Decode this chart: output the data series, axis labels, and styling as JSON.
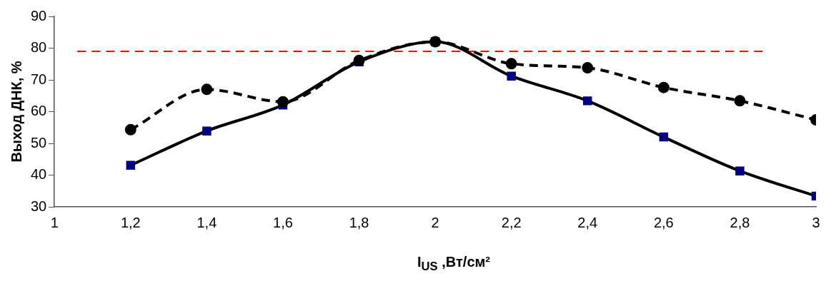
{
  "chart_data": {
    "type": "line",
    "ylabel": "Выход ДНК, %",
    "xlabel": "I$_{US}$ ,Вт/см²",
    "x": [
      1.2,
      1.4,
      1.6,
      1.8,
      2,
      2.2,
      2.4,
      2.6,
      2.8,
      3
    ],
    "xlim": [
      1,
      3
    ],
    "xticks": [
      1,
      {
        "value": 1.2,
        "label": "1,2"
      },
      {
        "value": 1.4,
        "label": "1,4"
      },
      {
        "value": 1.6,
        "label": "1,6"
      },
      {
        "value": 1.8,
        "label": "1,8"
      },
      2,
      {
        "value": 2.2,
        "label": "2,2"
      },
      {
        "value": 2.4,
        "label": "2,4"
      },
      {
        "value": 2.6,
        "label": "2,6"
      },
      {
        "value": 2.8,
        "label": "2,8"
      },
      3
    ],
    "ylim": [
      30,
      90
    ],
    "yticks": [
      30,
      40,
      50,
      60,
      70,
      80,
      90
    ],
    "grid": false,
    "legend": false,
    "series": [
      {
        "color": "#000000",
        "values": [
          54.3,
          67,
          63.1,
          76.1,
          82,
          75.1,
          73.8,
          67.6,
          63.4,
          57.4
        ],
        "marker": "circle",
        "line_style": "dashed"
      },
      {
        "color": "#000080",
        "values": [
          43.1,
          53.9,
          62.1,
          75.7,
          82,
          71.2,
          63.4,
          52,
          41.3,
          33.4
        ],
        "marker": "square",
        "line_style": "solid"
      },
      {
        "color": "#ff0000",
        "x": [
          1.06,
          2.86
        ],
        "values": [
          79,
          79
        ],
        "marker": "none",
        "line_style": "dashed"
      }
    ]
  }
}
